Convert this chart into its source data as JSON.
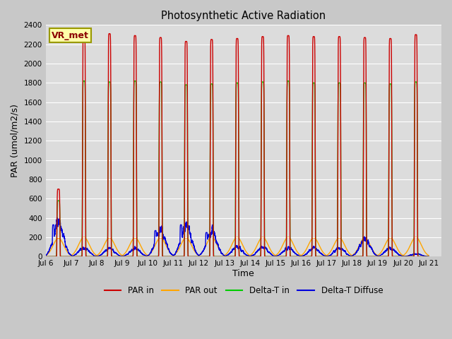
{
  "title": "Photosynthetic Active Radiation",
  "xlabel": "Time",
  "ylabel": "PAR (umol/m2/s)",
  "ylim": [
    0,
    2400
  ],
  "x_start_day": 6,
  "x_end_day": 21,
  "xlim_left": 6,
  "xlim_right": 21.5,
  "annotation": "VR_met",
  "bg_color": "#dcdcdc",
  "fig_bg": "#c8c8c8",
  "series": {
    "PAR_in": {
      "color": "#cc0000",
      "label": "PAR in"
    },
    "PAR_out": {
      "color": "#ffa500",
      "label": "PAR out"
    },
    "Delta_T_in": {
      "color": "#00cc00",
      "label": "Delta-T in"
    },
    "Delta_T_Diffuse": {
      "color": "#0000dd",
      "label": "Delta-T Diffuse"
    }
  },
  "daily_peaks_PAR_in": [
    700,
    2340,
    2310,
    2290,
    2270,
    2230,
    2250,
    2260,
    2280,
    2290,
    2280,
    2280,
    2270,
    2260,
    2300,
    0
  ],
  "daily_peaks_PAR_out": [
    190,
    200,
    195,
    195,
    195,
    195,
    200,
    200,
    200,
    200,
    195,
    195,
    195,
    195,
    200,
    0
  ],
  "daily_peaks_Delta_T_in": [
    580,
    1820,
    1810,
    1820,
    1810,
    1780,
    1790,
    1800,
    1810,
    1820,
    1800,
    1800,
    1800,
    1790,
    1810,
    0
  ],
  "daily_peaks_Delta_T_Diffuse": [
    330,
    90,
    85,
    85,
    270,
    330,
    250,
    100,
    95,
    90,
    90,
    90,
    185,
    90,
    30,
    0
  ],
  "yticks": [
    0,
    200,
    400,
    600,
    800,
    1000,
    1200,
    1400,
    1600,
    1800,
    2000,
    2200,
    2400
  ],
  "xtick_days": [
    6,
    7,
    8,
    9,
    10,
    11,
    12,
    13,
    14,
    15,
    16,
    17,
    18,
    19,
    20,
    21
  ]
}
